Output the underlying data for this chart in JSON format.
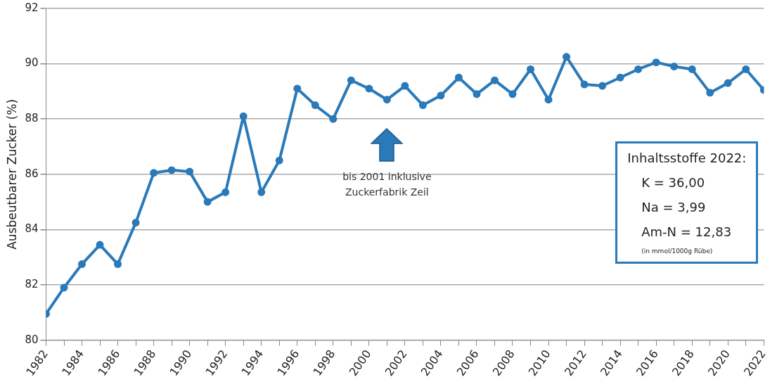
{
  "chart_data": {
    "type": "line",
    "ylabel": "Ausbeutbarer Zucker (%)",
    "x": [
      1982,
      1983,
      1984,
      1985,
      1986,
      1987,
      1988,
      1989,
      1990,
      1991,
      1992,
      1993,
      1994,
      1995,
      1996,
      1997,
      1998,
      1999,
      2000,
      2001,
      2002,
      2003,
      2004,
      2005,
      2006,
      2007,
      2008,
      2009,
      2010,
      2011,
      2012,
      2013,
      2014,
      2015,
      2016,
      2017,
      2018,
      2019,
      2020,
      2021,
      2022
    ],
    "series": [
      {
        "color": "#2a7ab9",
        "values": [
          80.95,
          81.9,
          82.75,
          83.45,
          82.75,
          84.25,
          86.05,
          86.15,
          86.1,
          85.0,
          85.35,
          88.1,
          85.35,
          86.5,
          89.1,
          88.5,
          88.0,
          89.4,
          89.1,
          88.7,
          89.2,
          88.5,
          88.85,
          89.5,
          88.9,
          89.4,
          88.9,
          89.8,
          88.7,
          90.25,
          89.25,
          89.2,
          89.5,
          89.8,
          90.05,
          89.9,
          89.8,
          88.95,
          89.3,
          89.8,
          89.05
        ]
      }
    ],
    "xlim": [
      1982,
      2022
    ],
    "xticks": [
      1982,
      {
        "value": 1983,
        "label": null
      },
      1984,
      {
        "value": 1985,
        "label": null
      },
      1986,
      {
        "value": 1987,
        "label": null
      },
      1988,
      {
        "value": 1989,
        "label": null
      },
      1990,
      {
        "value": 1991,
        "label": null
      },
      1992,
      {
        "value": 1993,
        "label": null
      },
      1994,
      {
        "value": 1995,
        "label": null
      },
      1996,
      {
        "value": 1997,
        "label": null
      },
      1998,
      {
        "value": 1999,
        "label": null
      },
      2000,
      {
        "value": 2001,
        "label": null
      },
      2002,
      {
        "value": 2003,
        "label": null
      },
      2004,
      {
        "value": 2005,
        "label": null
      },
      2006,
      {
        "value": 2007,
        "label": null
      },
      2008,
      {
        "value": 2009,
        "label": null
      },
      2010,
      {
        "value": 2011,
        "label": null
      },
      2012,
      {
        "value": 2013,
        "label": null
      },
      2014,
      {
        "value": 2015,
        "label": null
      },
      2016,
      {
        "value": 2017,
        "label": null
      },
      2018,
      {
        "value": 2019,
        "label": null
      },
      2020,
      {
        "value": 2021,
        "label": null
      },
      2022
    ],
    "ylim": [
      80,
      92
    ],
    "yticks": [
      80,
      82,
      84,
      86,
      88,
      90,
      92
    ],
    "grid": "y",
    "legend": false,
    "marker": "circle",
    "line_style": "solid",
    "annotations": [
      "bis 2001 inklusive Zuckerfabrik Zeil",
      "Inhaltsstoffe 2022:",
      "K = 36,00",
      "Na = 3,99",
      "Am-N = 12,83",
      "(in mmol/1000g Rübe)"
    ]
  }
}
